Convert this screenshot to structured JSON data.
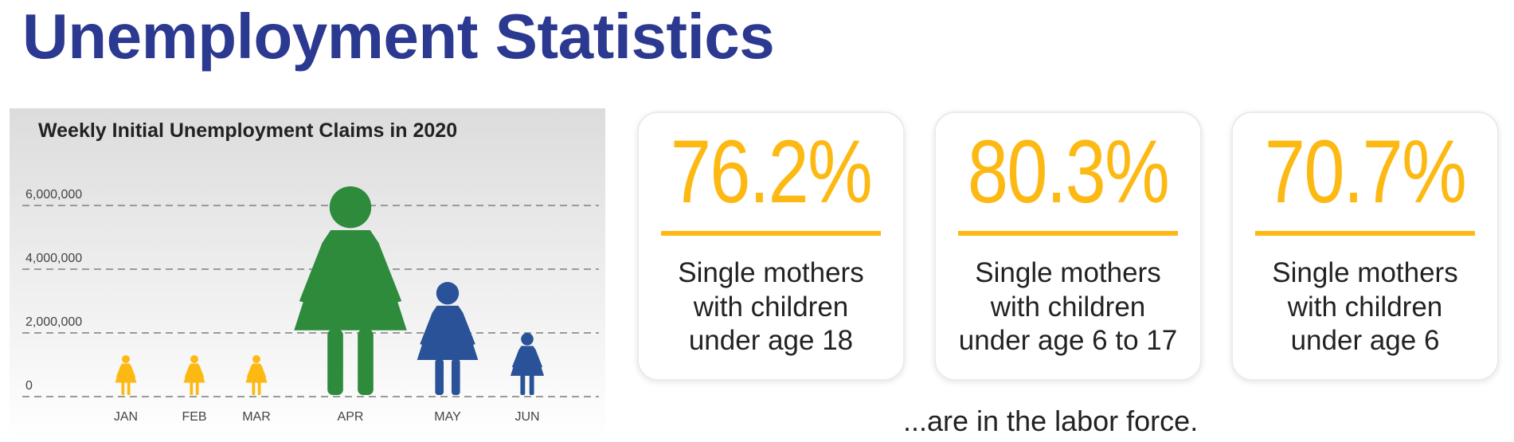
{
  "page": {
    "title": "Unemployment Statistics",
    "footnote": "...are in the labor force."
  },
  "colors": {
    "title": "#2b3990",
    "jan_mar_figures": "#fdb913",
    "apr_figure": "#2e8b3c",
    "may_jun_figures": "#2a5298",
    "stat_accent": "#fdb913"
  },
  "stats": [
    {
      "value": "76.2%",
      "description": "Single mothers\nwith children\nunder age 18"
    },
    {
      "value": "80.3%",
      "description": "Single mothers\nwith children\nunder age 6 to 17"
    },
    {
      "value": "70.7%",
      "description": "Single mothers\nwith children\nunder age 6"
    }
  ],
  "chart_data": {
    "type": "pictograph",
    "title": "Weekly Initial Unemployment Claims in 2020",
    "xlabel": "",
    "ylabel": "",
    "ylim": [
      0,
      6000000
    ],
    "yticks": [
      0,
      2000000,
      4000000,
      6000000
    ],
    "ytick_labels": [
      "0",
      "2,000,000",
      "4,000,000",
      "6,000,000"
    ],
    "grid": true,
    "categories": [
      "JAN",
      "FEB",
      "MAR",
      "APR",
      "MAY",
      "JUN"
    ],
    "values": [
      1300000,
      1300000,
      1300000,
      6600000,
      3600000,
      2000000
    ],
    "icon": "woman-figure-icon",
    "point_colors": [
      "#fdb913",
      "#fdb913",
      "#fdb913",
      "#2e8b3c",
      "#2a5298",
      "#2a5298"
    ]
  }
}
